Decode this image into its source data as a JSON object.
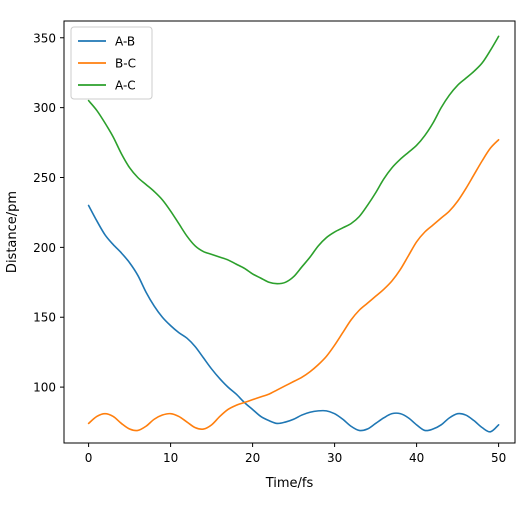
{
  "chart_data": {
    "type": "line",
    "title": "",
    "xlabel": "Time/fs",
    "ylabel": "Distance/pm",
    "xlim": [
      -3,
      52
    ],
    "ylim": [
      60,
      362
    ],
    "xticks": [
      0,
      10,
      20,
      30,
      40,
      50
    ],
    "yticks": [
      100,
      150,
      200,
      250,
      300,
      350
    ],
    "grid": false,
    "legend_position": "top-left",
    "series": [
      {
        "name": "A-B",
        "color": "#1f77b4",
        "x": [
          0,
          1,
          2,
          3,
          4,
          5,
          6,
          7,
          8,
          9,
          10,
          11,
          12,
          13,
          14,
          15,
          16,
          17,
          18,
          19,
          20,
          21,
          22,
          23,
          24,
          25,
          26,
          27,
          28,
          29,
          30,
          31,
          32,
          33,
          34,
          35,
          36,
          37,
          38,
          39,
          40,
          41,
          42,
          43,
          44,
          45,
          46,
          47,
          48,
          49,
          50
        ],
        "values": [
          230,
          219,
          209,
          202,
          196,
          189,
          180,
          168,
          158,
          150,
          144,
          139,
          135,
          129,
          121,
          113,
          106,
          100,
          95,
          89,
          84,
          79,
          76,
          74,
          75,
          77,
          80,
          82,
          83,
          83,
          81,
          77,
          72,
          69,
          70,
          74,
          78,
          81,
          81,
          78,
          73,
          69,
          70,
          73,
          78,
          81,
          80,
          76,
          71,
          68,
          73
        ]
      },
      {
        "name": "B-C",
        "color": "#ff7f0e",
        "x": [
          0,
          1,
          2,
          3,
          4,
          5,
          6,
          7,
          8,
          9,
          10,
          11,
          12,
          13,
          14,
          15,
          16,
          17,
          18,
          19,
          20,
          21,
          22,
          23,
          24,
          25,
          26,
          27,
          28,
          29,
          30,
          31,
          32,
          33,
          34,
          35,
          36,
          37,
          38,
          39,
          40,
          41,
          42,
          43,
          44,
          45,
          46,
          47,
          48,
          49,
          50
        ],
        "values": [
          74,
          79,
          81,
          79,
          74,
          70,
          69,
          72,
          77,
          80,
          81,
          79,
          75,
          71,
          70,
          73,
          79,
          84,
          87,
          89,
          91,
          93,
          95,
          98,
          101,
          104,
          107,
          111,
          116,
          122,
          130,
          139,
          148,
          155,
          160,
          165,
          170,
          176,
          184,
          194,
          204,
          211,
          216,
          221,
          226,
          233,
          242,
          252,
          262,
          271,
          277
        ]
      },
      {
        "name": "A-C",
        "color": "#2ca02c",
        "x": [
          0,
          1,
          2,
          3,
          4,
          5,
          6,
          7,
          8,
          9,
          10,
          11,
          12,
          13,
          14,
          15,
          16,
          17,
          18,
          19,
          20,
          21,
          22,
          23,
          24,
          25,
          26,
          27,
          28,
          29,
          30,
          31,
          32,
          33,
          34,
          35,
          36,
          37,
          38,
          39,
          40,
          41,
          42,
          43,
          44,
          45,
          46,
          47,
          48,
          49,
          50
        ],
        "values": [
          305,
          298,
          289,
          279,
          267,
          257,
          250,
          245,
          240,
          234,
          226,
          217,
          208,
          201,
          197,
          195,
          193,
          191,
          188,
          185,
          181,
          178,
          175,
          174,
          175,
          179,
          186,
          193,
          201,
          207,
          211,
          214,
          217,
          222,
          230,
          239,
          249,
          257,
          263,
          268,
          273,
          280,
          289,
          300,
          309,
          316,
          321,
          326,
          332,
          341,
          351
        ]
      }
    ]
  }
}
